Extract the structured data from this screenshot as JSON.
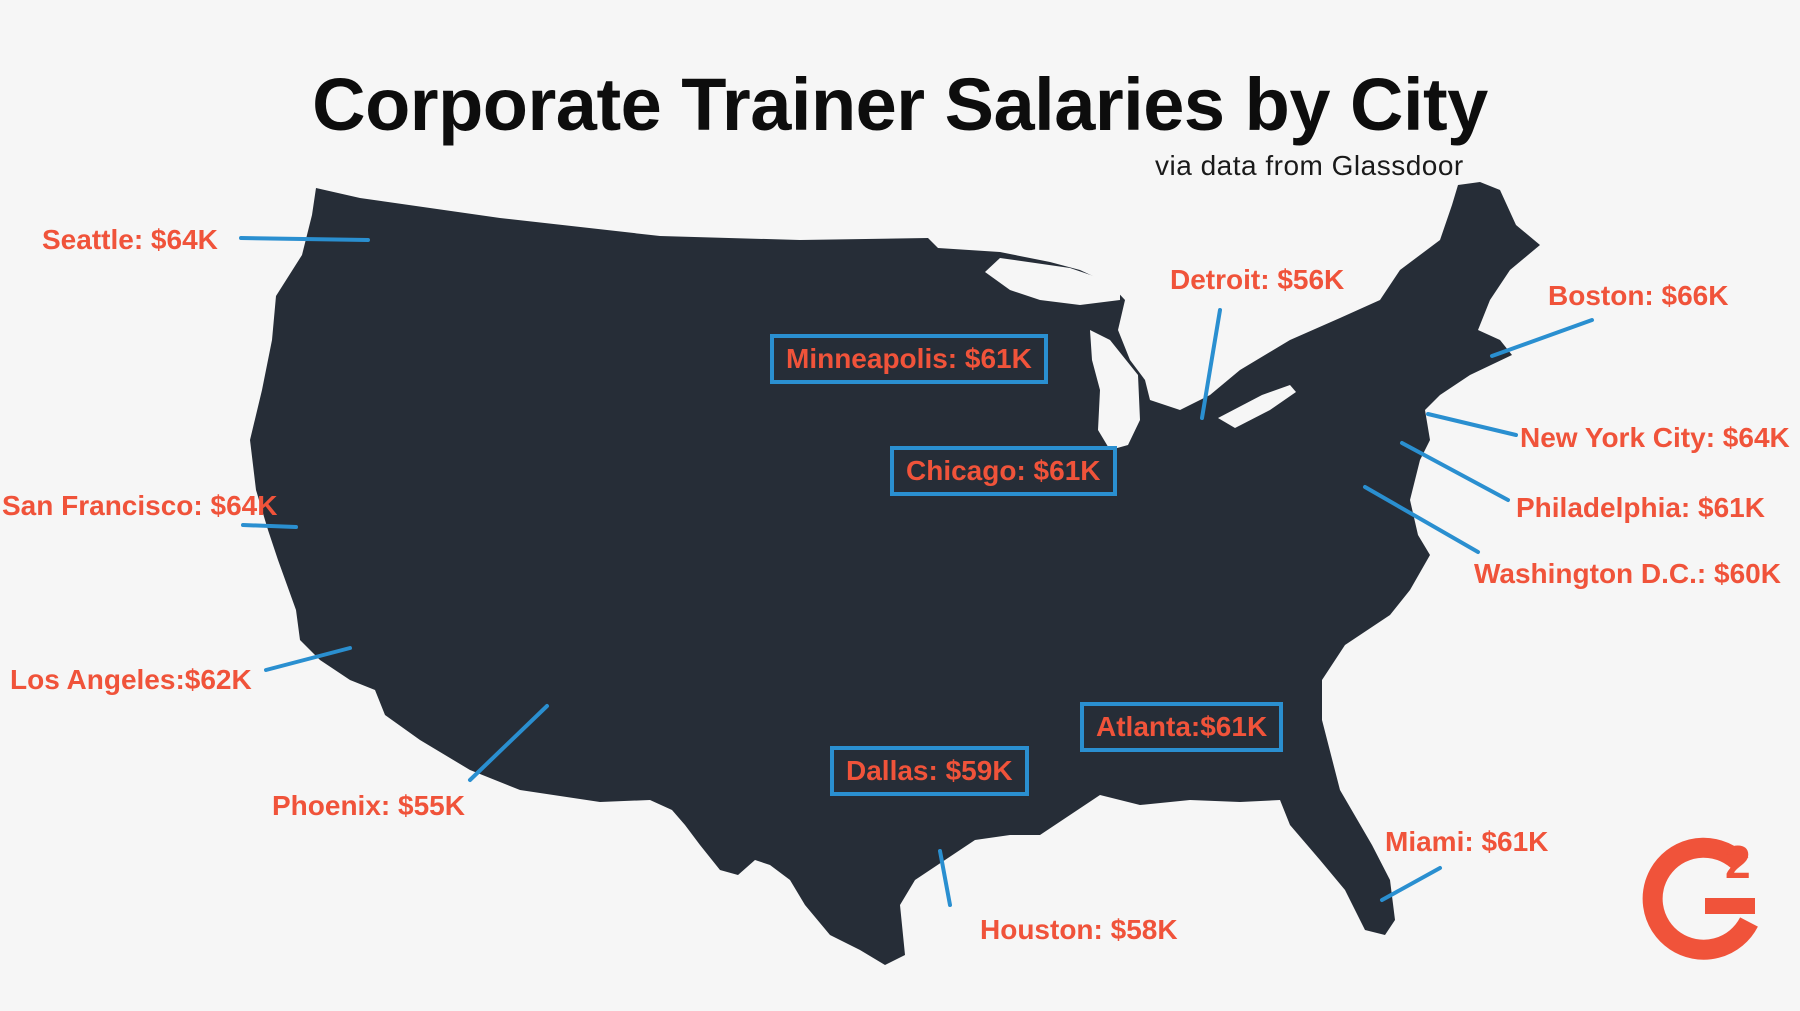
{
  "title": "Corporate Trainer Salaries by City",
  "subtitle": "via data from Glassdoor",
  "colors": {
    "background": "#f6f6f6",
    "map_fill": "#262d37",
    "label": "#f0533a",
    "leader_line": "#2a8fd0",
    "logo": "#f0533a"
  },
  "logo": {
    "name": "g2-logo",
    "text": "G",
    "superscript": "2"
  },
  "cities": {
    "seattle": "Seattle: $64K",
    "san_francisco": "San Francisco: $64K",
    "los_angeles": "Los  Angeles:$62K",
    "phoenix": "Phoenix: $55K",
    "minneapolis": "Minneapolis: $61K",
    "chicago": "Chicago: $61K",
    "detroit": "Detroit: $56K",
    "dallas": "Dallas: $59K",
    "houston": "Houston: $58K",
    "atlanta": "Atlanta:$61K",
    "miami": "Miami: $61K",
    "boston": "Boston: $66K",
    "new_york": "New York City: $64K",
    "philadelphia": "Philadelphia: $61K",
    "washington": "Washington D.C.: $60K"
  }
}
